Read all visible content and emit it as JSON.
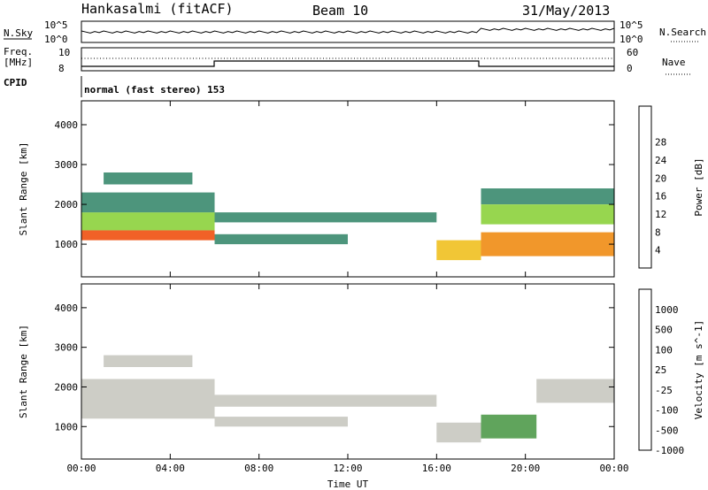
{
  "header": {
    "station": "Hankasalmi (fitACF)",
    "beam": "Beam 10",
    "date": "31/May/2013"
  },
  "status_panel": {
    "nsky_label": "N.Sky",
    "nsearch_label": "N.Search",
    "freq_label": "Freq.",
    "freq_unit": "[MHz]",
    "nave_label": "Nave",
    "cpid_label": "CPID",
    "cpid_text": "normal (fast stereo) 153",
    "noise_ticks": [
      "10^5",
      "10^0"
    ],
    "freq_ticks": [
      "10",
      "8"
    ],
    "nave_ticks": [
      "60",
      "0"
    ]
  },
  "chart_data": [
    {
      "type": "heatmap",
      "title": "",
      "xlabel": "Time UT",
      "ylabel": "Slant Range [km]",
      "xlim": [
        "00:00",
        "24:00"
      ],
      "ylim": [
        180,
        4600
      ],
      "x_ticks": [
        "00:00",
        "04:00",
        "08:00",
        "12:00",
        "16:00",
        "20:00",
        "00:00"
      ],
      "y_ticks": [
        1000,
        2000,
        3000,
        4000
      ],
      "colorbar_label": "Power [dB]",
      "colorbar_ticks": [
        4,
        8,
        12,
        16,
        20,
        24,
        28
      ],
      "colorscale": [
        "#0000f0",
        "#2050c8",
        "#3a8a6e",
        "#4cae6a",
        "#8cd13c",
        "#f0c020",
        "#f08c14",
        "#f05010",
        "#e01010"
      ],
      "echo_bands": [
        {
          "t0": 0.0,
          "t1": 6.0,
          "r0": 1100,
          "r1": 1350,
          "db": 28
        },
        {
          "t0": 0.0,
          "t1": 6.0,
          "r0": 1350,
          "r1": 1800,
          "db": 16
        },
        {
          "t0": 0.0,
          "t1": 6.0,
          "r0": 1800,
          "r1": 2300,
          "db": 8
        },
        {
          "t0": 1.0,
          "t1": 5.0,
          "r0": 2500,
          "r1": 2800,
          "db": 8
        },
        {
          "t0": 6.0,
          "t1": 16.0,
          "r0": 1550,
          "r1": 1800,
          "db": 8
        },
        {
          "t0": 6.0,
          "t1": 12.0,
          "r0": 1000,
          "r1": 1250,
          "db": 8
        },
        {
          "t0": 16.0,
          "t1": 18.0,
          "r0": 600,
          "r1": 1100,
          "db": 20
        },
        {
          "t0": 18.0,
          "t1": 24.0,
          "r0": 700,
          "r1": 1300,
          "db": 24
        },
        {
          "t0": 18.0,
          "t1": 24.0,
          "r0": 1500,
          "r1": 2000,
          "db": 16
        },
        {
          "t0": 18.0,
          "t1": 24.0,
          "r0": 2000,
          "r1": 2400,
          "db": 8
        }
      ]
    },
    {
      "type": "heatmap",
      "title": "",
      "xlabel": "Time UT",
      "ylabel": "Slant Range [km]",
      "xlim": [
        "00:00",
        "24:00"
      ],
      "ylim": [
        180,
        4600
      ],
      "x_ticks": [
        "00:00",
        "04:00",
        "08:00",
        "12:00",
        "16:00",
        "20:00",
        "00:00"
      ],
      "y_ticks": [
        1000,
        2000,
        3000,
        4000
      ],
      "colorbar_label": "Velocity [m s^-1]",
      "colorbar_ticks": [
        1000,
        500,
        100,
        25,
        -25,
        -100,
        -500,
        -1000
      ],
      "colorscale": [
        "#1030a0",
        "#2f6f8a",
        "#4f9a4a",
        "#7ed040",
        "#c8c8c0",
        "#f0a020",
        "#f06010",
        "#e01010"
      ],
      "echo_bands": [
        {
          "t0": 0.0,
          "t1": 6.0,
          "r0": 1200,
          "r1": 2200,
          "v": 0
        },
        {
          "t0": 1.0,
          "t1": 5.0,
          "r0": 2500,
          "r1": 2800,
          "v": 0
        },
        {
          "t0": 6.0,
          "t1": 16.0,
          "r0": 1500,
          "r1": 1800,
          "v": 0
        },
        {
          "t0": 6.0,
          "t1": 12.0,
          "r0": 1000,
          "r1": 1250,
          "v": 0
        },
        {
          "t0": 16.0,
          "t1": 18.0,
          "r0": 600,
          "r1": 1100,
          "v": 0
        },
        {
          "t0": 18.0,
          "t1": 20.5,
          "r0": 700,
          "r1": 1300,
          "v": 150
        },
        {
          "t0": 20.5,
          "t1": 24.0,
          "r0": 1600,
          "r1": 2200,
          "v": 0
        }
      ]
    }
  ]
}
